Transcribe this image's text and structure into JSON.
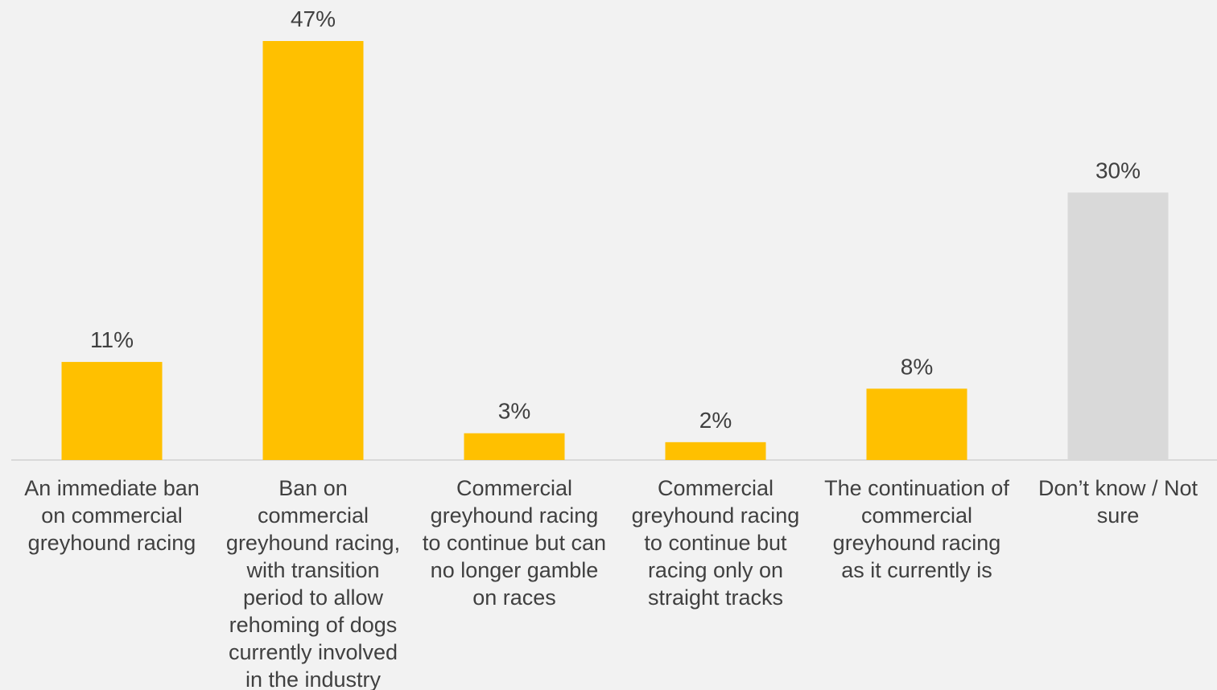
{
  "chart_data": {
    "type": "bar",
    "categories": [
      "An immediate ban\non commercial\ngreyhound racing",
      "Ban on\ncommercial\ngreyhound racing,\nwith transition\nperiod to allow\nrehoming of dogs\ncurrently involved\nin the industry",
      "Commercial\ngreyhound racing\nto continue but can\nno longer gamble\non races",
      "Commercial\ngreyhound racing\nto continue but\nracing only on\nstraight tracks",
      "The continuation of\ncommercial\ngreyhound racing\nas it currently is",
      "Don’t know / Not\nsure"
    ],
    "values": [
      11,
      47,
      3,
      2,
      8,
      30
    ],
    "value_labels": [
      "11%",
      "47%",
      "3%",
      "2%",
      "8%",
      "30%"
    ],
    "unit": "%",
    "ylim": [
      0,
      47
    ],
    "grid": false,
    "legend": "none",
    "colors": {
      "bar": "#ffc000",
      "dont_know_bar": "#d9d9d9",
      "axis": "#d9d9d9",
      "text": "#404040",
      "background": "#f2f2f2"
    }
  }
}
